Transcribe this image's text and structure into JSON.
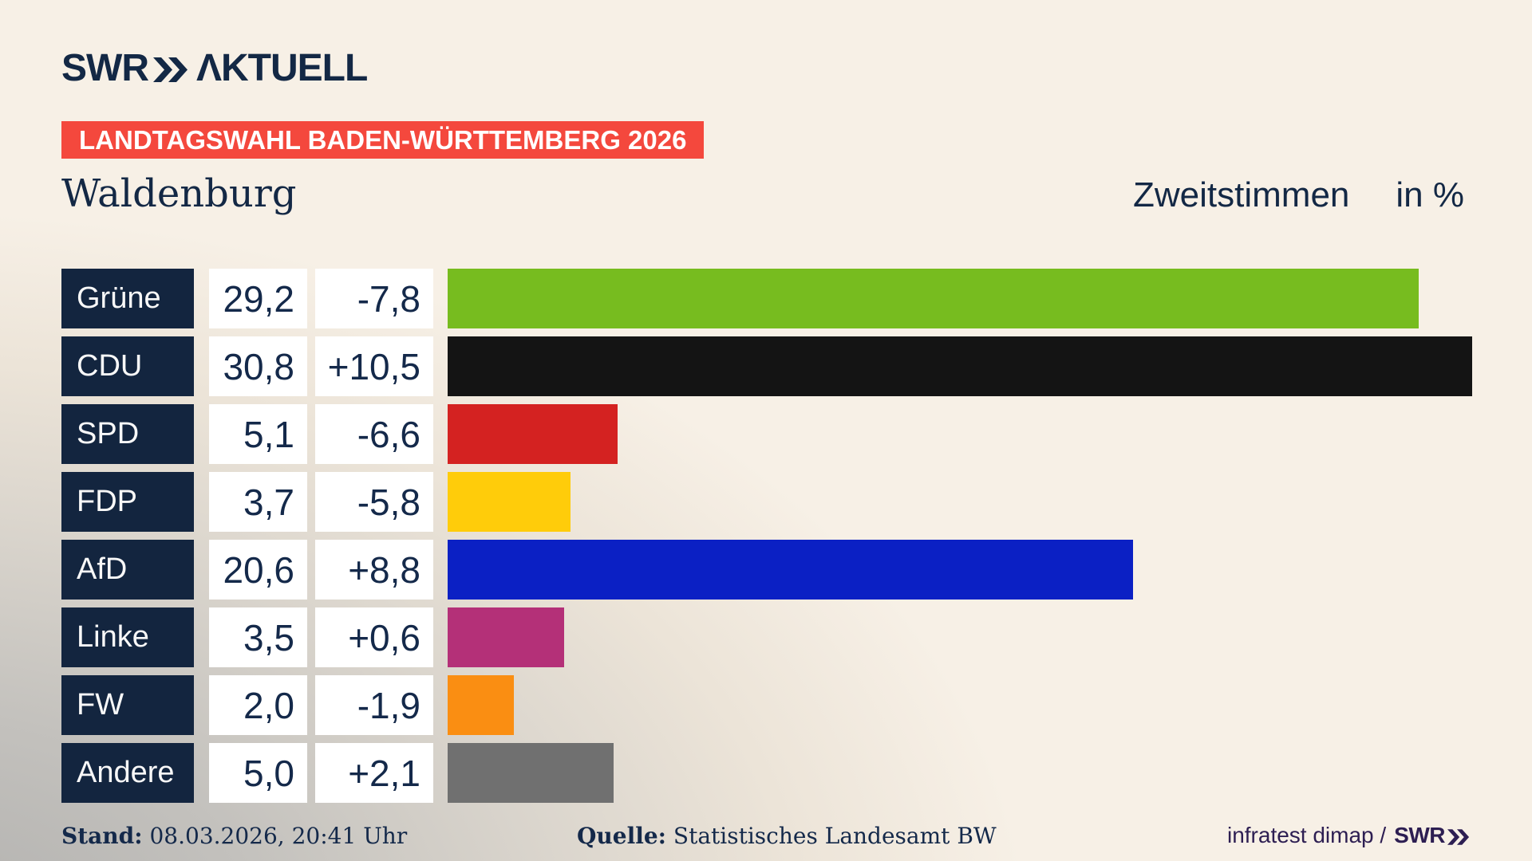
{
  "header": {
    "brand": {
      "swr": "SWR",
      "aktuell": "ΛKTUELL"
    },
    "banner": "LANDTAGSWAHL BADEN-WÜRTTEMBERG 2026"
  },
  "title": {
    "location": "Waldenburg",
    "measure": "Zweitstimmen",
    "unit": "in %"
  },
  "chart_data": {
    "type": "bar",
    "orientation": "horizontal",
    "title": "Waldenburg",
    "subtitle": "Zweitstimmen in %",
    "unit": "%",
    "xlim": [
      0,
      32.6
    ],
    "grid": false,
    "categories": [
      "Grüne",
      "CDU",
      "SPD",
      "FDP",
      "AfD",
      "Linke",
      "FW",
      "Andere"
    ],
    "values": [
      29.2,
      30.8,
      5.1,
      3.7,
      20.6,
      3.5,
      2.0,
      5.0
    ],
    "value_labels": [
      "29,2",
      "30,8",
      "5,1",
      "3,7",
      "20,6",
      "3,5",
      "2,0",
      "5,0"
    ],
    "change_labels": [
      "-7,8",
      "+10,5",
      "-6,6",
      "-5,8",
      "+8,8",
      "+0,6",
      "-1,9",
      "+2,1"
    ],
    "bar_colors": [
      "#77bc1f",
      "#141414",
      "#d42221",
      "#ffcc0a",
      "#0b20c4",
      "#b43078",
      "#fa8e12",
      "#707070"
    ]
  },
  "footer": {
    "stand_label": "Stand:",
    "stand_value": " 08.03.2026, 20:41 Uhr",
    "quelle_label": "Quelle:",
    "quelle_value": " Statistisches Landesamt BW",
    "credit": "infratest dimap /",
    "credit_brand": "SWR"
  },
  "colors": {
    "navy": "#13253f",
    "banner_red": "#f4483d",
    "background_cream": "#f7f0e6",
    "background_gray": "#b0afad",
    "credit_violet": "#2d1e52"
  }
}
